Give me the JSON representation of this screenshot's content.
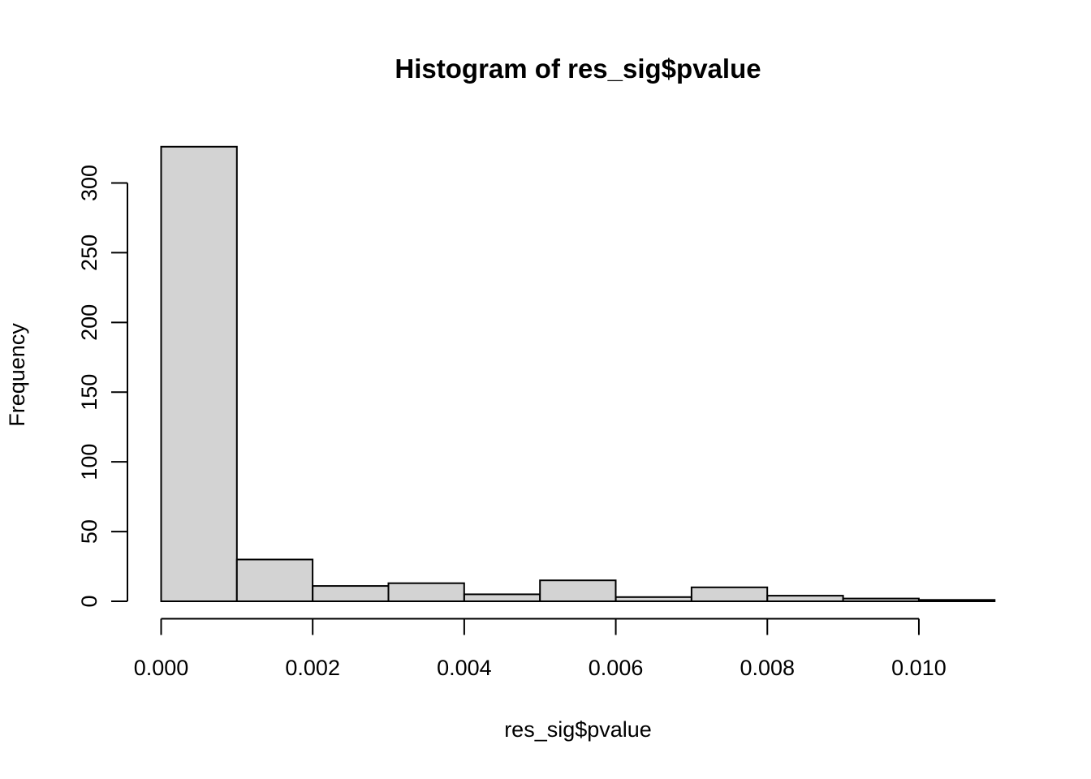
{
  "figure": {
    "title": "Histogram of res_sig$pvalue",
    "xlabel": "res_sig$pvalue",
    "ylabel": "Frequency"
  },
  "chart_data": {
    "type": "bar",
    "subtype": "histogram",
    "title": "Histogram of res_sig$pvalue",
    "xlabel": "res_sig$pvalue",
    "ylabel": "Frequency",
    "bin_width": 0.001,
    "bin_edges": [
      0.0,
      0.001,
      0.002,
      0.003,
      0.004,
      0.005,
      0.006,
      0.007,
      0.008,
      0.009,
      0.01,
      0.011
    ],
    "counts": [
      326,
      30,
      11,
      13,
      5,
      15,
      3,
      10,
      4,
      2,
      1
    ],
    "x_tick_values": [
      0.0,
      0.002,
      0.004,
      0.006,
      0.008,
      0.01
    ],
    "x_tick_labels": [
      "0.000",
      "0.002",
      "0.004",
      "0.006",
      "0.008",
      "0.010"
    ],
    "y_tick_values": [
      0,
      50,
      100,
      150,
      200,
      250,
      300
    ],
    "y_tick_labels": [
      "0",
      "50",
      "100",
      "150",
      "200",
      "250",
      "300"
    ],
    "xlim": [
      0.0,
      0.011
    ],
    "ylim": [
      0,
      300
    ],
    "grid": false,
    "legend": null,
    "colors": {
      "bar_fill": "#d3d3d3",
      "bar_stroke": "#000000",
      "axis": "#000000",
      "text": "#000000",
      "background": "#ffffff"
    }
  }
}
